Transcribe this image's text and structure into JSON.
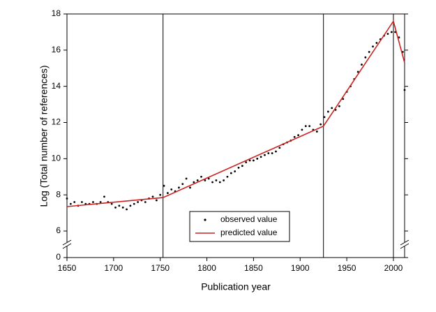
{
  "chart_data": {
    "type": "scatter",
    "x_label": "Publication year",
    "y_label": "Log (Total number of references)",
    "xlim": [
      1650,
      2012
    ],
    "xticks": [
      1650,
      1700,
      1750,
      1800,
      1850,
      1900,
      1950,
      2000
    ],
    "ylim": [
      0,
      18
    ],
    "yticks": [
      0,
      6,
      8,
      10,
      12,
      14,
      16,
      18
    ],
    "y_break": [
      0,
      6
    ],
    "vlines": [
      1753,
      1925,
      2000
    ],
    "legend": "lower center",
    "series": [
      {
        "name": "observed value",
        "type": "scatter",
        "color": "#000000",
        "x": [
          1650,
          1654,
          1658,
          1662,
          1666,
          1670,
          1674,
          1678,
          1682,
          1686,
          1690,
          1694,
          1698,
          1702,
          1706,
          1710,
          1714,
          1718,
          1722,
          1726,
          1730,
          1734,
          1738,
          1742,
          1746,
          1750,
          1754,
          1758,
          1762,
          1766,
          1770,
          1774,
          1778,
          1782,
          1786,
          1790,
          1794,
          1798,
          1802,
          1806,
          1810,
          1814,
          1818,
          1822,
          1826,
          1830,
          1834,
          1838,
          1842,
          1846,
          1850,
          1854,
          1858,
          1862,
          1866,
          1870,
          1874,
          1878,
          1882,
          1886,
          1890,
          1894,
          1898,
          1902,
          1906,
          1910,
          1914,
          1918,
          1922,
          1926,
          1930,
          1934,
          1938,
          1942,
          1946,
          1950,
          1954,
          1958,
          1962,
          1966,
          1970,
          1974,
          1978,
          1982,
          1986,
          1990,
          1994,
          1998,
          2002,
          2006,
          2010,
          2012
        ],
        "values": [
          7.8,
          7.5,
          7.6,
          7.4,
          7.6,
          7.5,
          7.5,
          7.6,
          7.5,
          7.6,
          7.9,
          7.6,
          7.5,
          7.3,
          7.4,
          7.3,
          7.2,
          7.4,
          7.5,
          7.6,
          7.7,
          7.6,
          7.8,
          7.9,
          7.7,
          8.0,
          8.5,
          8.1,
          8.3,
          8.2,
          8.4,
          8.6,
          8.9,
          8.4,
          8.7,
          8.8,
          9.0,
          8.8,
          8.9,
          8.7,
          8.8,
          8.7,
          8.8,
          9.0,
          9.2,
          9.3,
          9.5,
          9.6,
          9.8,
          9.9,
          9.9,
          10.0,
          10.1,
          10.2,
          10.3,
          10.3,
          10.4,
          10.6,
          10.8,
          10.9,
          11.0,
          11.2,
          11.3,
          11.6,
          11.8,
          11.8,
          11.6,
          11.5,
          11.9,
          12.3,
          12.6,
          12.8,
          12.7,
          12.9,
          13.3,
          13.7,
          14.0,
          14.4,
          14.8,
          15.2,
          15.6,
          15.9,
          16.2,
          16.4,
          16.6,
          16.8,
          16.9,
          17.0,
          17.0,
          16.7,
          15.9,
          13.8
        ]
      },
      {
        "name": "predicted value",
        "type": "line",
        "color": "#cc2222",
        "x": [
          1650,
          1753,
          1925,
          2000,
          2012
        ],
        "values": [
          7.35,
          7.85,
          11.8,
          17.6,
          15.3
        ]
      }
    ]
  }
}
